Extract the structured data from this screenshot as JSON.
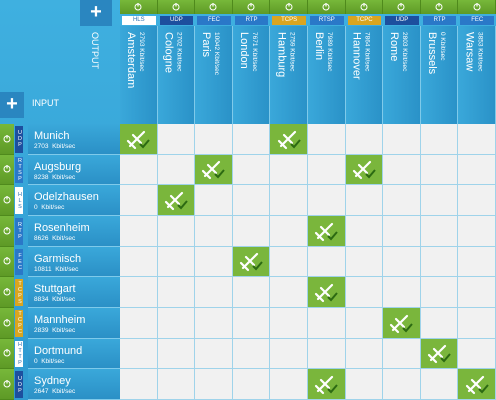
{
  "output_label": "OUTPUT",
  "input_label": "INPUT",
  "outputs": [
    {
      "name": "Amsterdam",
      "rate": "2793 Kbit/sec",
      "protocol": "HLS",
      "color": "#ffffff",
      "text": "#2a6fb0"
    },
    {
      "name": "Cologne",
      "rate": "2702 Kbit/sec",
      "protocol": "UDP",
      "color": "#1d4f9e",
      "text": "#ffffff"
    },
    {
      "name": "Paris",
      "rate": "10042 Kbit/sec",
      "protocol": "FEC",
      "color": "#2a78c8",
      "text": "#ffffff"
    },
    {
      "name": "London",
      "rate": "7671 Kbit/sec",
      "protocol": "RTP",
      "color": "#2a78c8",
      "text": "#ffffff"
    },
    {
      "name": "Hamburg",
      "rate": "2759 Kbit/sec",
      "protocol": "TCPS",
      "color": "#d9a520",
      "text": "#ffffff"
    },
    {
      "name": "Berlin",
      "rate": "7989 Kbit/sec",
      "protocol": "RTSP",
      "color": "#2a78c8",
      "text": "#ffffff"
    },
    {
      "name": "Hannover",
      "rate": "7864 Kbit/sec",
      "protocol": "TCPC",
      "color": "#d9a520",
      "text": "#ffffff"
    },
    {
      "name": "Rome",
      "rate": "2803 Kbit/sec",
      "protocol": "UDP",
      "color": "#1d4f9e",
      "text": "#ffffff"
    },
    {
      "name": "Brussels",
      "rate": "0 Kbit/sec",
      "protocol": "RTP",
      "color": "#2a78c8",
      "text": "#ffffff"
    },
    {
      "name": "Warsaw",
      "rate": "3853 Kbit/sec",
      "protocol": "FEC",
      "color": "#2a78c8",
      "text": "#ffffff"
    }
  ],
  "inputs": [
    {
      "name": "Munich",
      "rate": "2703  Kbit/sec",
      "protocol": "UDP",
      "color": "#1d4f9e",
      "text": "#ffffff",
      "routes": [
        true,
        false,
        false,
        false,
        true,
        false,
        false,
        false,
        false,
        false
      ]
    },
    {
      "name": "Augsburg",
      "rate": "8238  Kbit/sec",
      "protocol": "RTSP",
      "color": "#2a78c8",
      "text": "#ffffff",
      "routes": [
        false,
        false,
        true,
        false,
        false,
        false,
        true,
        false,
        false,
        false
      ]
    },
    {
      "name": "Odelzhausen",
      "rate": "0  Kbit/sec",
      "protocol": "HLS",
      "color": "#ffffff",
      "text": "#2a6fb0",
      "routes": [
        false,
        true,
        false,
        false,
        false,
        false,
        false,
        false,
        false,
        false
      ]
    },
    {
      "name": "Rosenheim",
      "rate": "8626  Kbit/sec",
      "protocol": "RTP",
      "color": "#2a78c8",
      "text": "#ffffff",
      "routes": [
        false,
        false,
        false,
        false,
        false,
        true,
        false,
        false,
        false,
        false
      ]
    },
    {
      "name": "Garmisch",
      "rate": "10811  Kbit/sec",
      "protocol": "FEC",
      "color": "#2a78c8",
      "text": "#ffffff",
      "routes": [
        false,
        false,
        false,
        true,
        false,
        false,
        false,
        false,
        false,
        false
      ]
    },
    {
      "name": "Stuttgart",
      "rate": "8834  Kbit/sec",
      "protocol": "TCPS",
      "color": "#d9a520",
      "text": "#ffffff",
      "routes": [
        false,
        false,
        false,
        false,
        false,
        true,
        false,
        false,
        false,
        false
      ]
    },
    {
      "name": "Mannheim",
      "rate": "2839  Kbit/sec",
      "protocol": "TCPC",
      "color": "#d9a520",
      "text": "#ffffff",
      "routes": [
        false,
        false,
        false,
        false,
        false,
        false,
        false,
        true,
        false,
        false
      ]
    },
    {
      "name": "Dortmund",
      "rate": "0  Kbit/sec",
      "protocol": "HTTP",
      "color": "#ffffff",
      "text": "#2a6fb0",
      "routes": [
        false,
        false,
        false,
        false,
        false,
        false,
        false,
        false,
        true,
        false
      ]
    },
    {
      "name": "Sydney",
      "rate": "2647  Kbit/sec",
      "protocol": "UDP",
      "color": "#1d4f9e",
      "text": "#ffffff",
      "routes": [
        false,
        false,
        false,
        false,
        false,
        true,
        false,
        false,
        false,
        true
      ]
    }
  ]
}
